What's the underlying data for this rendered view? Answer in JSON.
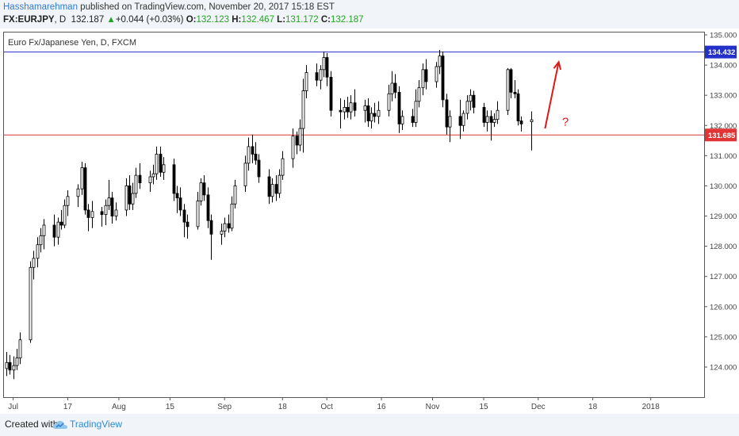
{
  "header": {
    "author": "Hasshamarehman",
    "published_text": "published on TradingView.com, November 20, 2017 15:18 EST",
    "symbol": "FX:EURJPY",
    "interval": ", D",
    "last_price": "132.187",
    "change_arrow": "▲",
    "change": "+0.044 (+0.03%)",
    "o_label": "O:",
    "o_value": "132.123",
    "h_label": "H:",
    "h_value": "132.467",
    "l_label": "L:",
    "l_value": "131.172",
    "c_label": "C:",
    "c_value": "132.187"
  },
  "footer": {
    "created_with": "Created with",
    "brand": "TradingView"
  },
  "colors": {
    "resistance": "#2431c8",
    "support": "#e23434",
    "arrow": "#e01818",
    "candle": "#000000",
    "header_bg": "#f1f4f8"
  },
  "chart_data": {
    "type": "candlestick",
    "title": "Euro Fx/Japanese Yen, D, FXCM",
    "ylim": [
      123.0,
      135.2
    ],
    "y_ticks": [
      "135.000",
      "134.000",
      "133.000",
      "132.000",
      "131.000",
      "130.000",
      "129.000",
      "128.000",
      "127.000",
      "126.000",
      "125.000",
      "124.000"
    ],
    "x_tick_labels": [
      "Jul",
      "17",
      "Aug",
      "15",
      "Sep",
      "18",
      "Oct",
      "16",
      "Nov",
      "15",
      "Dec",
      "18",
      "2018"
    ],
    "x_tick_days": [
      2,
      18,
      33,
      48,
      64,
      81,
      94,
      110,
      125,
      140,
      156,
      172,
      189
    ],
    "first_date": "2017-06-19",
    "candles": [
      {
        "d": 0,
        "o": 123.95,
        "h": 124.5,
        "l": 123.7,
        "c": 124.15
      },
      {
        "d": 1,
        "o": 124.15,
        "h": 124.4,
        "l": 123.75,
        "c": 123.9
      },
      {
        "d": 2,
        "o": 123.9,
        "h": 124.35,
        "l": 123.6,
        "c": 124.05
      },
      {
        "d": 3,
        "o": 124.05,
        "h": 124.6,
        "l": 123.9,
        "c": 124.3
      },
      {
        "d": 4,
        "o": 124.3,
        "h": 125.15,
        "l": 124.1,
        "c": 124.9
      },
      {
        "d": 7,
        "o": 124.9,
        "h": 127.5,
        "l": 124.8,
        "c": 127.3
      },
      {
        "d": 8,
        "o": 127.3,
        "h": 127.85,
        "l": 126.9,
        "c": 127.6
      },
      {
        "d": 9,
        "o": 127.6,
        "h": 128.3,
        "l": 127.3,
        "c": 128.05
      },
      {
        "d": 10,
        "o": 128.05,
        "h": 128.6,
        "l": 127.8,
        "c": 128.35
      },
      {
        "d": 11,
        "o": 128.35,
        "h": 128.9,
        "l": 127.9,
        "c": 128.7
      },
      {
        "d": 14,
        "o": 128.7,
        "h": 129.05,
        "l": 128.0,
        "c": 128.3
      },
      {
        "d": 15,
        "o": 128.3,
        "h": 128.95,
        "l": 128.05,
        "c": 128.8
      },
      {
        "d": 16,
        "o": 128.8,
        "h": 129.2,
        "l": 128.55,
        "c": 128.7
      },
      {
        "d": 17,
        "o": 128.7,
        "h": 129.55,
        "l": 128.6,
        "c": 129.35
      },
      {
        "d": 18,
        "o": 129.35,
        "h": 129.85,
        "l": 129.0,
        "c": 129.65
      },
      {
        "d": 21,
        "o": 129.65,
        "h": 130.05,
        "l": 129.3,
        "c": 129.9
      },
      {
        "d": 22,
        "o": 129.9,
        "h": 130.8,
        "l": 129.7,
        "c": 130.6
      },
      {
        "d": 23,
        "o": 130.6,
        "h": 130.75,
        "l": 129.05,
        "c": 129.2
      },
      {
        "d": 24,
        "o": 129.2,
        "h": 129.4,
        "l": 128.5,
        "c": 128.95
      },
      {
        "d": 25,
        "o": 128.95,
        "h": 129.5,
        "l": 128.6,
        "c": 129.15
      },
      {
        "d": 28,
        "o": 129.15,
        "h": 129.3,
        "l": 128.65,
        "c": 129.05
      },
      {
        "d": 29,
        "o": 129.05,
        "h": 129.55,
        "l": 128.7,
        "c": 129.35
      },
      {
        "d": 30,
        "o": 129.35,
        "h": 130.2,
        "l": 129.2,
        "c": 129.6
      },
      {
        "d": 31,
        "o": 129.6,
        "h": 129.8,
        "l": 128.75,
        "c": 129.0
      },
      {
        "d": 32,
        "o": 129.0,
        "h": 129.45,
        "l": 128.85,
        "c": 129.2
      },
      {
        "d": 35,
        "o": 129.2,
        "h": 130.25,
        "l": 129.0,
        "c": 130.0
      },
      {
        "d": 36,
        "o": 130.0,
        "h": 130.35,
        "l": 129.2,
        "c": 129.4
      },
      {
        "d": 37,
        "o": 129.4,
        "h": 130.1,
        "l": 129.2,
        "c": 129.75
      },
      {
        "d": 38,
        "o": 129.75,
        "h": 130.6,
        "l": 129.6,
        "c": 130.35
      },
      {
        "d": 39,
        "o": 130.35,
        "h": 130.75,
        "l": 129.9,
        "c": 130.1
      },
      {
        "d": 42,
        "o": 130.1,
        "h": 130.5,
        "l": 129.8,
        "c": 130.3
      },
      {
        "d": 43,
        "o": 130.3,
        "h": 130.7,
        "l": 130.05,
        "c": 130.4
      },
      {
        "d": 44,
        "o": 130.4,
        "h": 131.3,
        "l": 130.2,
        "c": 131.05
      },
      {
        "d": 45,
        "o": 131.05,
        "h": 131.3,
        "l": 130.3,
        "c": 130.45
      },
      {
        "d": 46,
        "o": 130.45,
        "h": 130.95,
        "l": 130.2,
        "c": 130.7
      },
      {
        "d": 49,
        "o": 130.7,
        "h": 130.9,
        "l": 129.5,
        "c": 129.75
      },
      {
        "d": 50,
        "o": 129.75,
        "h": 130.0,
        "l": 129.1,
        "c": 129.6
      },
      {
        "d": 51,
        "o": 129.6,
        "h": 129.95,
        "l": 129.0,
        "c": 129.2
      },
      {
        "d": 52,
        "o": 129.2,
        "h": 129.4,
        "l": 128.3,
        "c": 128.8
      },
      {
        "d": 53,
        "o": 128.8,
        "h": 129.05,
        "l": 128.25,
        "c": 128.65
      },
      {
        "d": 56,
        "o": 128.65,
        "h": 129.8,
        "l": 128.55,
        "c": 129.5
      },
      {
        "d": 57,
        "o": 129.5,
        "h": 130.25,
        "l": 129.35,
        "c": 130.1
      },
      {
        "d": 58,
        "o": 130.1,
        "h": 130.35,
        "l": 129.5,
        "c": 129.7
      },
      {
        "d": 59,
        "o": 129.7,
        "h": 129.95,
        "l": 128.6,
        "c": 128.85
      },
      {
        "d": 60,
        "o": 128.85,
        "h": 129.05,
        "l": 127.55,
        "c": 128.4
      },
      {
        "d": 63,
        "o": 128.4,
        "h": 128.75,
        "l": 128.05,
        "c": 128.5
      },
      {
        "d": 64,
        "o": 128.5,
        "h": 128.95,
        "l": 128.3,
        "c": 128.75
      },
      {
        "d": 65,
        "o": 128.75,
        "h": 129.05,
        "l": 128.45,
        "c": 128.6
      },
      {
        "d": 66,
        "o": 128.6,
        "h": 129.65,
        "l": 128.5,
        "c": 129.4
      },
      {
        "d": 67,
        "o": 129.4,
        "h": 130.2,
        "l": 129.25,
        "c": 130.0
      },
      {
        "d": 70,
        "o": 130.0,
        "h": 131.0,
        "l": 129.8,
        "c": 130.75
      },
      {
        "d": 71,
        "o": 130.75,
        "h": 131.6,
        "l": 130.5,
        "c": 131.3
      },
      {
        "d": 72,
        "o": 131.3,
        "h": 131.7,
        "l": 130.75,
        "c": 131.05
      },
      {
        "d": 73,
        "o": 131.05,
        "h": 131.45,
        "l": 130.7,
        "c": 130.85
      },
      {
        "d": 74,
        "o": 130.85,
        "h": 131.05,
        "l": 130.1,
        "c": 130.3
      },
      {
        "d": 77,
        "o": 130.3,
        "h": 130.55,
        "l": 129.4,
        "c": 129.65
      },
      {
        "d": 78,
        "o": 129.65,
        "h": 130.25,
        "l": 129.45,
        "c": 130.05
      },
      {
        "d": 79,
        "o": 130.05,
        "h": 130.35,
        "l": 129.5,
        "c": 129.75
      },
      {
        "d": 80,
        "o": 129.75,
        "h": 130.55,
        "l": 129.6,
        "c": 130.35
      },
      {
        "d": 81,
        "o": 130.35,
        "h": 131.15,
        "l": 130.2,
        "c": 130.9
      },
      {
        "d": 84,
        "o": 130.9,
        "h": 131.9,
        "l": 130.6,
        "c": 131.65
      },
      {
        "d": 85,
        "o": 131.65,
        "h": 131.8,
        "l": 131.05,
        "c": 131.35
      },
      {
        "d": 86,
        "o": 131.35,
        "h": 132.2,
        "l": 131.15,
        "c": 131.9
      },
      {
        "d": 87,
        "o": 131.9,
        "h": 133.55,
        "l": 131.1,
        "c": 133.15
      },
      {
        "d": 88,
        "o": 133.15,
        "h": 134.0,
        "l": 132.9,
        "c": 133.75
      },
      {
        "d": 91,
        "o": 133.75,
        "h": 134.05,
        "l": 133.3,
        "c": 133.5
      },
      {
        "d": 92,
        "o": 133.5,
        "h": 134.0,
        "l": 133.2,
        "c": 133.85
      },
      {
        "d": 93,
        "o": 133.85,
        "h": 134.45,
        "l": 133.6,
        "c": 134.25
      },
      {
        "d": 94,
        "o": 134.25,
        "h": 134.4,
        "l": 133.3,
        "c": 133.6
      },
      {
        "d": 95,
        "o": 133.6,
        "h": 133.8,
        "l": 132.3,
        "c": 132.5
      },
      {
        "d": 98,
        "o": 132.5,
        "h": 132.9,
        "l": 131.9,
        "c": 132.45
      },
      {
        "d": 99,
        "o": 132.45,
        "h": 132.85,
        "l": 132.2,
        "c": 132.6
      },
      {
        "d": 100,
        "o": 132.6,
        "h": 132.95,
        "l": 132.25,
        "c": 132.45
      },
      {
        "d": 101,
        "o": 132.45,
        "h": 133.0,
        "l": 132.2,
        "c": 132.75
      },
      {
        "d": 102,
        "o": 132.75,
        "h": 133.2,
        "l": 132.3,
        "c": 132.5
      },
      {
        "d": 105,
        "o": 132.5,
        "h": 132.85,
        "l": 132.1,
        "c": 132.65
      },
      {
        "d": 106,
        "o": 132.65,
        "h": 132.9,
        "l": 131.95,
        "c": 132.15
      },
      {
        "d": 107,
        "o": 132.15,
        "h": 132.6,
        "l": 131.9,
        "c": 132.4
      },
      {
        "d": 108,
        "o": 132.4,
        "h": 132.75,
        "l": 132.1,
        "c": 132.3
      },
      {
        "d": 109,
        "o": 132.3,
        "h": 132.8,
        "l": 132.05,
        "c": 132.5
      },
      {
        "d": 112,
        "o": 132.5,
        "h": 133.35,
        "l": 132.3,
        "c": 133.05
      },
      {
        "d": 113,
        "o": 133.05,
        "h": 133.8,
        "l": 132.8,
        "c": 133.4
      },
      {
        "d": 114,
        "o": 133.4,
        "h": 133.7,
        "l": 132.9,
        "c": 133.1
      },
      {
        "d": 115,
        "o": 133.1,
        "h": 133.3,
        "l": 131.75,
        "c": 132.05
      },
      {
        "d": 116,
        "o": 132.05,
        "h": 132.5,
        "l": 131.85,
        "c": 132.3
      },
      {
        "d": 119,
        "o": 132.3,
        "h": 132.55,
        "l": 131.95,
        "c": 132.1
      },
      {
        "d": 120,
        "o": 132.1,
        "h": 133.2,
        "l": 131.95,
        "c": 132.8
      },
      {
        "d": 121,
        "o": 132.8,
        "h": 133.5,
        "l": 132.6,
        "c": 133.25
      },
      {
        "d": 122,
        "o": 133.25,
        "h": 134.05,
        "l": 133.0,
        "c": 133.85
      },
      {
        "d": 123,
        "o": 133.85,
        "h": 134.2,
        "l": 133.2,
        "c": 133.45
      },
      {
        "d": 126,
        "o": 133.45,
        "h": 134.1,
        "l": 133.25,
        "c": 133.95
      },
      {
        "d": 127,
        "o": 133.95,
        "h": 134.5,
        "l": 133.7,
        "c": 134.3
      },
      {
        "d": 128,
        "o": 134.3,
        "h": 134.45,
        "l": 132.6,
        "c": 132.85
      },
      {
        "d": 129,
        "o": 132.85,
        "h": 133.05,
        "l": 131.7,
        "c": 131.95
      },
      {
        "d": 130,
        "o": 131.95,
        "h": 132.5,
        "l": 131.45,
        "c": 132.3
      },
      {
        "d": 133,
        "o": 132.3,
        "h": 132.85,
        "l": 131.55,
        "c": 132.0
      },
      {
        "d": 134,
        "o": 132.0,
        "h": 132.5,
        "l": 131.8,
        "c": 132.4
      },
      {
        "d": 135,
        "o": 132.4,
        "h": 133.0,
        "l": 132.2,
        "c": 132.8
      },
      {
        "d": 136,
        "o": 132.8,
        "h": 133.2,
        "l": 132.5,
        "c": 133.0
      },
      {
        "d": 137,
        "o": 133.0,
        "h": 133.15,
        "l": 132.4,
        "c": 132.6
      },
      {
        "d": 140,
        "o": 132.6,
        "h": 132.75,
        "l": 131.95,
        "c": 132.1
      },
      {
        "d": 141,
        "o": 132.1,
        "h": 132.5,
        "l": 131.8,
        "c": 132.3
      },
      {
        "d": 142,
        "o": 132.3,
        "h": 132.5,
        "l": 131.5,
        "c": 132.1
      },
      {
        "d": 143,
        "o": 132.1,
        "h": 132.4,
        "l": 131.95,
        "c": 132.2
      },
      {
        "d": 144,
        "o": 132.2,
        "h": 132.8,
        "l": 132.05,
        "c": 132.5
      },
      {
        "d": 147,
        "o": 132.5,
        "h": 133.9,
        "l": 132.35,
        "c": 133.85
      },
      {
        "d": 148,
        "o": 133.85,
        "h": 133.9,
        "l": 132.9,
        "c": 133.1
      },
      {
        "d": 149,
        "o": 133.1,
        "h": 133.5,
        "l": 132.9,
        "c": 133.05
      },
      {
        "d": 150,
        "o": 133.05,
        "h": 133.2,
        "l": 132.0,
        "c": 132.15
      },
      {
        "d": 151,
        "o": 132.15,
        "h": 132.3,
        "l": 131.8,
        "c": 132.05
      },
      {
        "d": 154,
        "o": 132.123,
        "h": 132.467,
        "l": 131.172,
        "c": 132.187
      }
    ],
    "lines": [
      {
        "name": "resistance",
        "value": 134.432,
        "label": "134.432"
      },
      {
        "name": "support",
        "value": 131.685,
        "label": "131.685"
      }
    ],
    "annotations": [
      {
        "type": "arrow",
        "from": {
          "d": 158,
          "v": 131.9
        },
        "to": {
          "d": 162,
          "v": 134.1
        }
      },
      {
        "type": "text",
        "text": "?",
        "d": 163,
        "v": 132.0
      }
    ],
    "grid": false
  }
}
